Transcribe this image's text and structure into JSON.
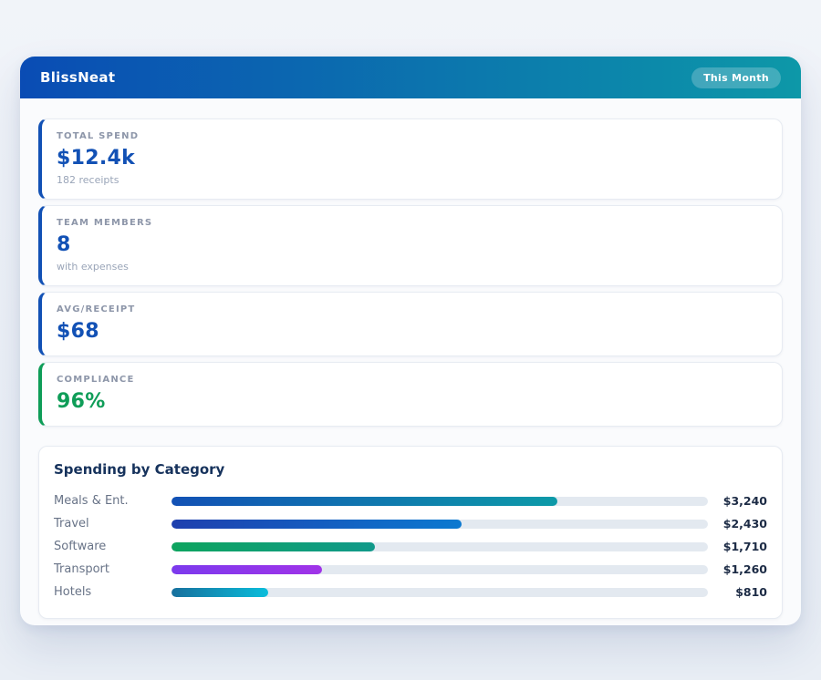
{
  "header": {
    "title": "BlissNeat",
    "badge": "This Month",
    "gradient_start": "#0a4cb4",
    "gradient_end": "#0d98a8"
  },
  "colors": {
    "accent_blue": "#1251b5",
    "accent_green": "#0f9d58",
    "bar_track": "#e3e9f0"
  },
  "stats": [
    {
      "label": "TOTAL SPEND",
      "value": "$12.4k",
      "sub": "182 receipts",
      "accent": "#1251b5"
    },
    {
      "label": "TEAM MEMBERS",
      "value": "8",
      "sub": "with expenses",
      "accent": "#1251b5"
    },
    {
      "label": "AVG/RECEIPT",
      "value": "$68",
      "sub": "",
      "accent": "#1251b5"
    },
    {
      "label": "COMPLIANCE",
      "value": "96%",
      "sub": "",
      "accent": "#0f9d58"
    }
  ],
  "chart_data": {
    "type": "bar",
    "orientation": "horizontal",
    "title": "Spending by Category",
    "categories": [
      "Meals & Ent.",
      "Travel",
      "Software",
      "Transport",
      "Hotels"
    ],
    "values": [
      3240,
      2430,
      1710,
      1260,
      810
    ],
    "value_labels": [
      "$3,240",
      "$2,430",
      "$1,710",
      "$1,260",
      "$810"
    ],
    "axis_max": 4500,
    "grid": false,
    "legend": false,
    "bar_gradients": [
      [
        "#1251b5",
        "#0d9aa8"
      ],
      [
        "#1e3fae",
        "#0b79d0"
      ],
      [
        "#0ea45f",
        "#11998a"
      ],
      [
        "#7c3aed",
        "#a033e8"
      ],
      [
        "#17709d",
        "#0abddb"
      ]
    ]
  }
}
